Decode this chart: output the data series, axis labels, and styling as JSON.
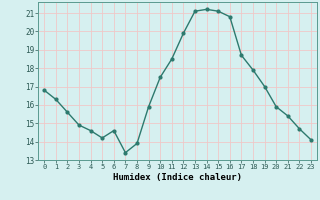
{
  "x": [
    0,
    1,
    2,
    3,
    4,
    5,
    6,
    7,
    8,
    9,
    10,
    11,
    12,
    13,
    14,
    15,
    16,
    17,
    18,
    19,
    20,
    21,
    22,
    23
  ],
  "y": [
    16.8,
    16.3,
    15.6,
    14.9,
    14.6,
    14.2,
    14.6,
    13.4,
    13.9,
    15.9,
    17.5,
    18.5,
    19.9,
    21.1,
    21.2,
    21.1,
    20.8,
    18.7,
    17.9,
    17.0,
    15.9,
    15.4,
    14.7,
    14.1
  ],
  "line_color": "#2d7a6e",
  "marker": "o",
  "marker_size": 2.0,
  "bg_color": "#d6f0f0",
  "grid_color": "#f0c8c8",
  "xlabel": "Humidex (Indice chaleur)",
  "ylim": [
    13,
    21.6
  ],
  "yticks": [
    13,
    14,
    15,
    16,
    17,
    18,
    19,
    20,
    21
  ],
  "xticks": [
    0,
    1,
    2,
    3,
    4,
    5,
    6,
    7,
    8,
    9,
    10,
    11,
    12,
    13,
    14,
    15,
    16,
    17,
    18,
    19,
    20,
    21,
    22,
    23
  ],
  "line_width": 1.0
}
